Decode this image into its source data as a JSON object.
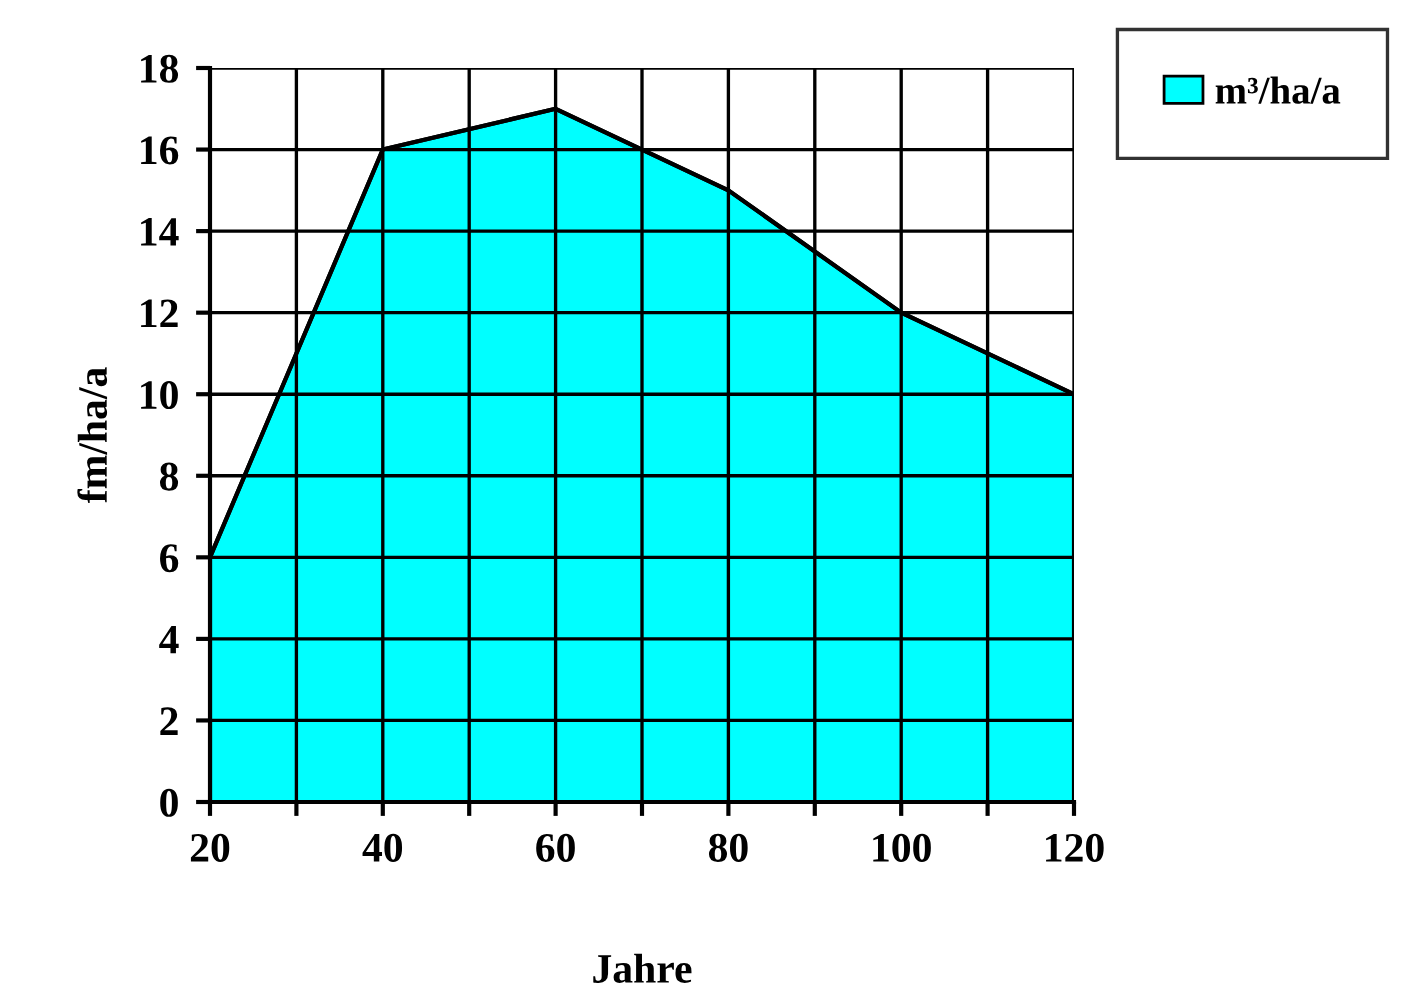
{
  "chart_data": {
    "type": "area",
    "xlabel": "Jahre",
    "ylabel": "fm/ha/a",
    "x": [
      20,
      40,
      60,
      80,
      100,
      120
    ],
    "series": [
      {
        "name": "m³/ha/a",
        "color": "#00ffff",
        "values": [
          6,
          16,
          17,
          15,
          12,
          10
        ]
      }
    ],
    "xlim": [
      20,
      120
    ],
    "ylim": [
      0,
      18
    ],
    "xticks": [
      20,
      {
        "value": 30,
        "label": null
      },
      40,
      {
        "value": 50,
        "label": null
      },
      60,
      {
        "value": 70,
        "label": null
      },
      80,
      {
        "value": 90,
        "label": null
      },
      100,
      {
        "value": 110,
        "label": null
      },
      120
    ],
    "yticks": [
      0,
      2,
      4,
      6,
      8,
      10,
      12,
      14,
      16,
      18
    ],
    "grid": true,
    "legend": "top right"
  }
}
